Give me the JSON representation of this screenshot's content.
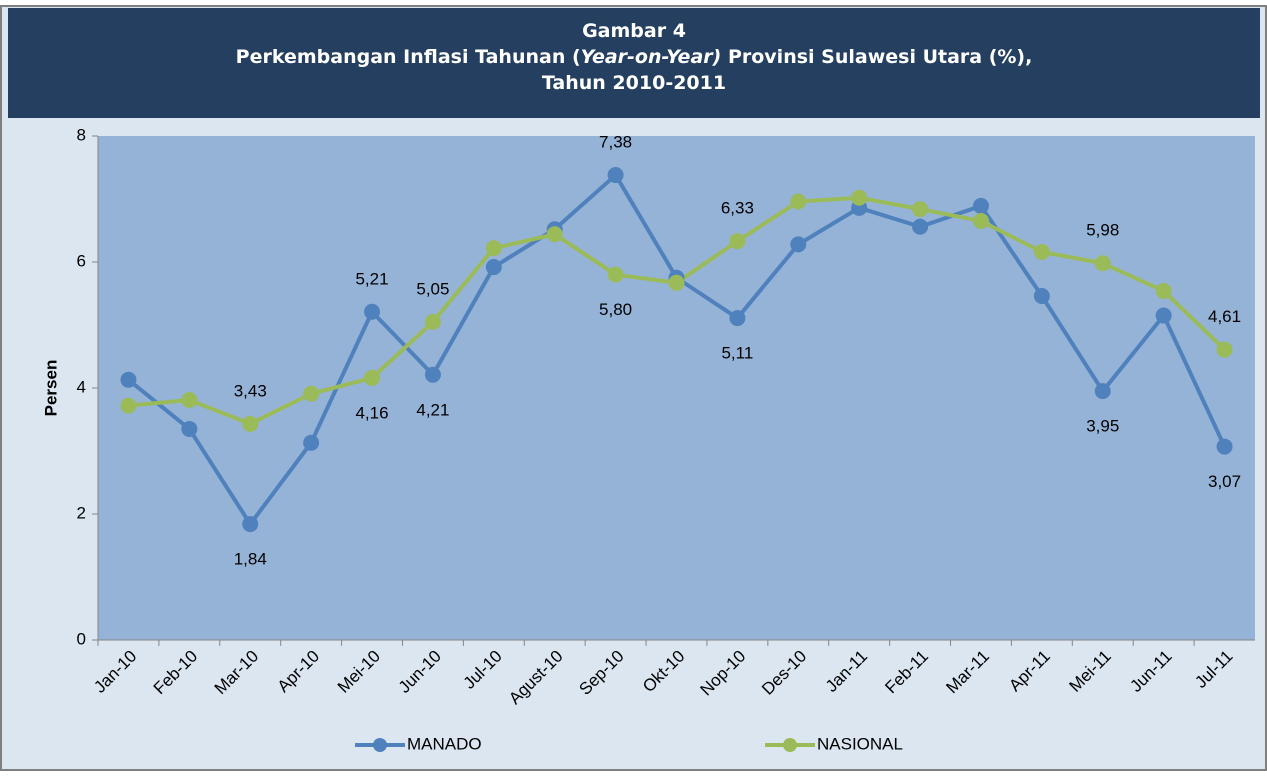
{
  "chart_data": {
    "type": "line",
    "title_lines": [
      [
        {
          "text": "Gambar 4",
          "italic": false
        }
      ],
      [
        {
          "text": "Perkembangan Inflasi Tahunan (",
          "italic": false
        },
        {
          "text": "Year-on-Year)",
          "italic": true
        },
        {
          "text": " Provinsi Sulawesi Utara (%),",
          "italic": false
        }
      ],
      [
        {
          "text": "Tahun 2010-2011",
          "italic": false
        }
      ]
    ],
    "y_label": "Persen",
    "categories": [
      "Jan-10",
      "Feb-10",
      "Mar-10",
      "Apr-10",
      "Mei-10",
      "Jun-10",
      "Jul-10",
      "Agust-10",
      "Sep-10",
      "Okt-10",
      "Nop-10",
      "Des-10",
      "Jan-11",
      "Feb-11",
      "Mar-11",
      "Apr-11",
      "Mei-11",
      "Jun-11",
      "Jul-11"
    ],
    "series": [
      {
        "name": "MANADO",
        "color": "#4f81bd",
        "values": [
          4.13,
          3.35,
          1.84,
          3.13,
          5.21,
          4.21,
          5.92,
          6.52,
          7.38,
          5.75,
          5.11,
          6.28,
          6.86,
          6.56,
          6.89,
          5.46,
          3.95,
          5.15,
          3.07
        ],
        "value_labels": [
          null,
          null,
          "1,84",
          null,
          "5,21",
          "4,21",
          null,
          null,
          "7,38",
          null,
          "5,11",
          null,
          null,
          null,
          null,
          null,
          "3,95",
          null,
          "3,07"
        ]
      },
      {
        "name": "NASIONAL",
        "color": "#9bbb59",
        "values": [
          3.72,
          3.81,
          3.43,
          3.91,
          4.16,
          5.05,
          6.22,
          6.44,
          5.8,
          5.67,
          6.33,
          6.96,
          7.02,
          6.84,
          6.65,
          6.16,
          5.98,
          5.54,
          4.61
        ],
        "value_labels": [
          null,
          null,
          "3,43",
          null,
          "4,16",
          "5,05",
          null,
          null,
          "5,80",
          null,
          "6,33",
          null,
          null,
          null,
          null,
          null,
          "5,98",
          null,
          "4,61"
        ]
      }
    ],
    "ylim": [
      0,
      8
    ],
    "yticks": [
      0,
      2,
      4,
      6,
      8
    ],
    "grid": false,
    "legend": "bottom"
  }
}
